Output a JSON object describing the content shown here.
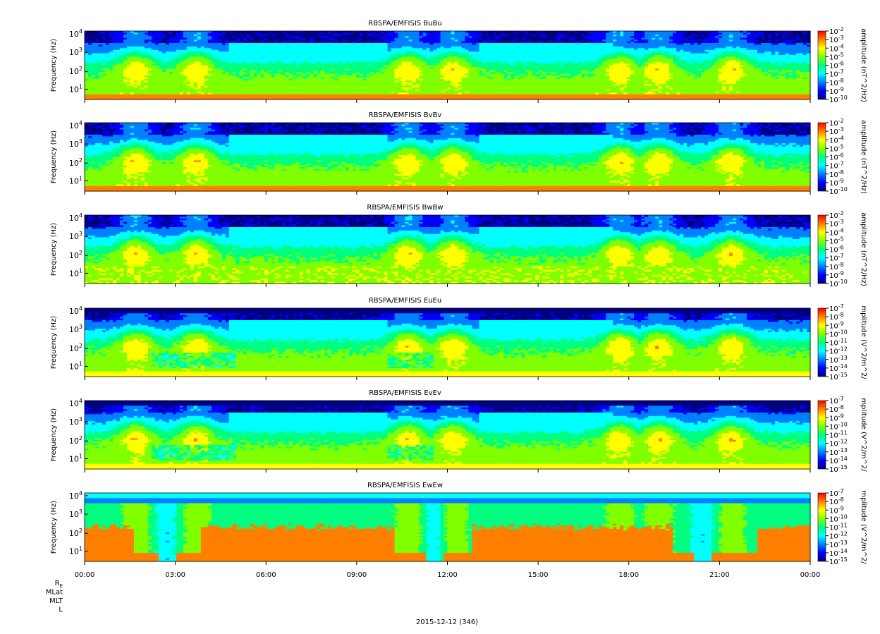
{
  "chart_data": {
    "type": "heatmap",
    "date_label": "2015-12-12 (346)",
    "x_tick_labels": [
      "00:00",
      "03:00",
      "06:00",
      "09:00",
      "12:00",
      "15:00",
      "18:00",
      "21:00",
      "00:00"
    ],
    "y_tick_labels": [
      "10^1",
      "10^2",
      "10^3",
      "10^4"
    ],
    "ephemeris_labels": [
      "R_E",
      "MLat",
      "MLT",
      "L"
    ],
    "colormap": [
      "#000080",
      "#0000ff",
      "#0080ff",
      "#00ffff",
      "#00ff80",
      "#80ff00",
      "#ffff00",
      "#ff8000",
      "#ff0000"
    ],
    "panels": [
      {
        "title": "RBSPA/EMFISIS  BuBu",
        "ylabel": "Frequency (Hz)",
        "colorbar_label": "amplitude (nT^2/Hz)",
        "cbar_exponents": [
          -2,
          -3,
          -4,
          -5,
          -6,
          -7,
          -8,
          -9,
          -10
        ],
        "kind": "B"
      },
      {
        "title": "RBSPA/EMFISIS  BvBv",
        "ylabel": "Frequency (Hz)",
        "colorbar_label": "amplitude (nT^2/Hz)",
        "cbar_exponents": [
          -2,
          -3,
          -4,
          -5,
          -6,
          -7,
          -8,
          -9,
          -10
        ],
        "kind": "B"
      },
      {
        "title": "RBSPA/EMFISIS  BwBw",
        "ylabel": "Frequency (Hz)",
        "colorbar_label": "amplitude (nT^2/Hz)",
        "cbar_exponents": [
          -2,
          -3,
          -4,
          -5,
          -6,
          -7,
          -8,
          -9,
          -10
        ],
        "kind": "Bw"
      },
      {
        "title": "RBSPA/EMFISIS  EuEu",
        "ylabel": "Frequency (Hz)",
        "colorbar_label": "mplitude (V^2/m^2/",
        "cbar_exponents": [
          -7,
          -8,
          -9,
          -10,
          -11,
          -12,
          -13,
          -14,
          -15
        ],
        "kind": "E"
      },
      {
        "title": "RBSPA/EMFISIS  EvEv",
        "ylabel": "Frequency (Hz)",
        "colorbar_label": "mplitude (V^2/m^2/",
        "cbar_exponents": [
          -7,
          -8,
          -9,
          -10,
          -11,
          -12,
          -13,
          -14,
          -15
        ],
        "kind": "E"
      },
      {
        "title": "RBSPA/EMFISIS  EwEw",
        "ylabel": "Frequency (Hz)",
        "colorbar_label": "mplitude (V^2/m^2/",
        "cbar_exponents": [
          -7,
          -8,
          -9,
          -10,
          -11,
          -12,
          -13,
          -14,
          -15
        ],
        "kind": "Ew"
      }
    ]
  }
}
